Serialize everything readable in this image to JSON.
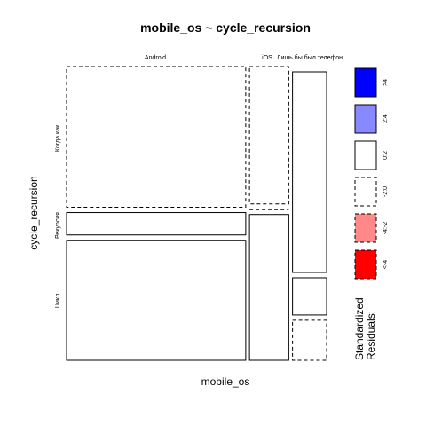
{
  "chart_data": {
    "type": "mosaic",
    "title": "mobile_os ~ cycle_recursion",
    "xlabel": "mobile_os",
    "ylabel": "cycle_recursion",
    "columns": [
      {
        "label": "Android",
        "width_fraction": 0.689
      },
      {
        "label": "iOS",
        "width_fraction": 0.151
      },
      {
        "label": "Лишь бы был телефон",
        "width_fraction": 0.131
      }
    ],
    "rows": [
      "Когда как",
      "Рекурсия",
      "Цикл"
    ],
    "cells": [
      {
        "column": "Android",
        "row": "Когда как",
        "fraction": 0.497,
        "residual_class": "-2:0"
      },
      {
        "column": "Android",
        "row": "Рекурсия",
        "fraction": 0.079,
        "residual_class": "0:2"
      },
      {
        "column": "Android",
        "row": "Цикл",
        "fraction": 0.424,
        "residual_class": "0:2"
      },
      {
        "column": "iOS",
        "row": "Когда как",
        "fraction": 0.485,
        "residual_class": "-2:0"
      },
      {
        "column": "iOS",
        "row": "Рекурсия",
        "fraction": 0.0,
        "residual_class": "-2:0"
      },
      {
        "column": "iOS",
        "row": "Цикл",
        "fraction": 0.515,
        "residual_class": "0:2"
      },
      {
        "column": "Лишь бы был телефон",
        "row": "Когда как",
        "fraction": 0.0,
        "residual_class": "0:2"
      },
      {
        "column": "Лишь бы был телефон",
        "row": "Рекурсия",
        "fraction": 0.722,
        "residual_class": "0:2"
      },
      {
        "column": "Лишь бы был телефон",
        "row": "Цикл",
        "fraction": 0.134,
        "residual_class": "0:2"
      },
      {
        "column": "Лишь бы был телефон",
        "row": "_",
        "fraction": 0.144,
        "residual_class": "-2:0"
      }
    ],
    "legend": {
      "title": "Standardized\nResiduals:",
      "position": "right",
      "entries": [
        {
          "label": ">4",
          "fill": "#0000FF",
          "dashed": false
        },
        {
          "label": "2:4",
          "fill": "#8888FF",
          "dashed": false
        },
        {
          "label": "0:2",
          "fill": "#FFFFFF",
          "dashed": false
        },
        {
          "label": "-2:0",
          "fill": "#FFFFFF",
          "dashed": true
        },
        {
          "label": "-4:-2",
          "fill": "#FF8888",
          "dashed": true
        },
        {
          "label": "<-4",
          "fill": "#FF0000",
          "dashed": true
        }
      ]
    }
  }
}
